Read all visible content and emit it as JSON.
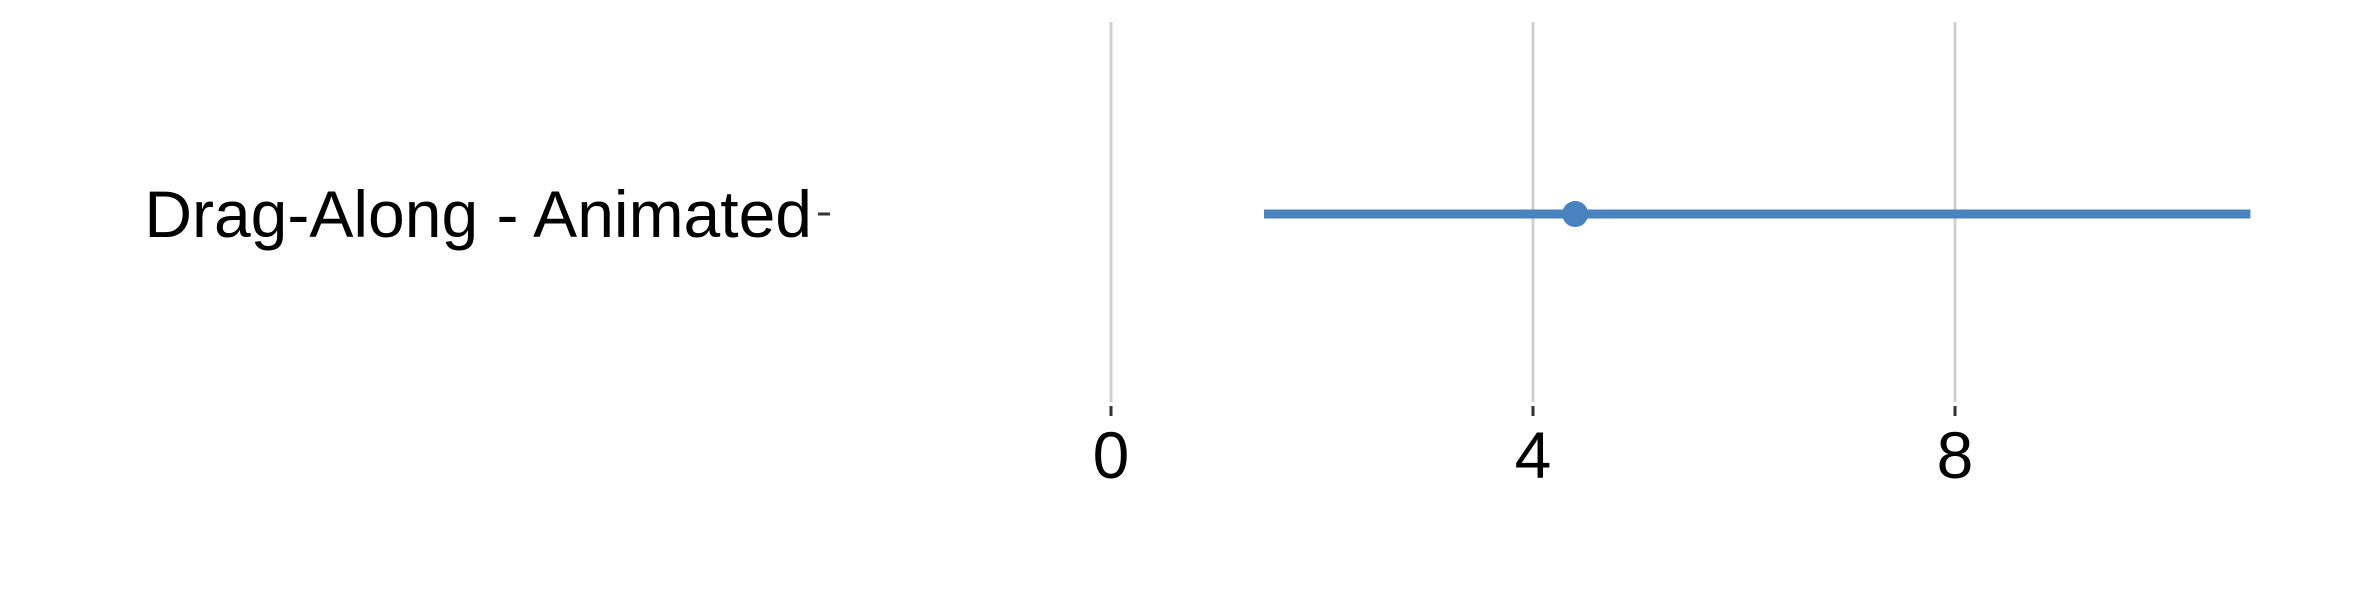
{
  "chart_data": {
    "type": "interval",
    "categories": [
      "Drag-Along - Animated"
    ],
    "series": [
      {
        "values": [
          {
            "point": 4.4,
            "low": 1.45,
            "high": 10.8
          }
        ]
      }
    ],
    "xlim": [
      0,
      11
    ],
    "xticks": [
      0,
      4,
      8
    ],
    "xtick_labels": [
      "0",
      "4",
      "8"
    ],
    "xlabel": "",
    "ylabel": "",
    "grid": true,
    "colors": {
      "series": "#4a81bf",
      "grid": "#d0d0d0",
      "tick": "#333333",
      "text": "#000000"
    }
  }
}
